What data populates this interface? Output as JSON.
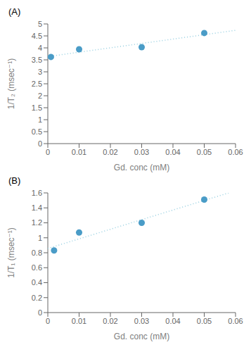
{
  "chart_data": [
    {
      "type": "scatter",
      "title": "(A)",
      "xlabel": "Gd. conc (mM)",
      "ylabel": "1/T₂ (msec⁻¹)",
      "x": [
        0.001,
        0.01,
        0.03,
        0.05
      ],
      "values": [
        3.62,
        3.94,
        4.03,
        4.62
      ],
      "color": "#4a9cc7",
      "trendline": {
        "x": [
          0,
          0.06
        ],
        "values": [
          3.6368,
          4.7331
        ],
        "color": "#96cfe0",
        "line_style": "dotted"
      },
      "xlim": [
        0,
        0.06
      ],
      "ylim": [
        0,
        5
      ],
      "xticks": [
        0,
        0.01,
        0.02,
        0.03,
        0.04,
        0.05,
        0.06
      ],
      "yticks": [
        0,
        0.5,
        1,
        1.5,
        2,
        2.5,
        3,
        3.5,
        4,
        4.5,
        5
      ],
      "grid": false
    },
    {
      "type": "scatter",
      "title": "(B)",
      "xlabel": "Gd. conc (mM)",
      "ylabel": "1/T₁ (msec⁻¹)",
      "x": [
        0.002,
        0.01,
        0.03,
        0.05
      ],
      "values": [
        0.83,
        1.07,
        1.2,
        1.51
      ],
      "color": "#4a9cc7",
      "trendline": {
        "x": [
          0,
          0.05783
        ],
        "values": [
          0.857,
          1.6
        ],
        "color": "#96cfe0",
        "line_style": "dotted"
      },
      "xlim": [
        0,
        0.06
      ],
      "ylim": [
        0,
        1.6
      ],
      "xticks": [
        0,
        0.01,
        0.02,
        0.03,
        0.04,
        0.05,
        0.06
      ],
      "yticks": [
        0,
        0.2,
        0.4,
        0.6,
        0.8,
        1,
        1.2,
        1.4,
        1.6
      ],
      "grid": false
    }
  ]
}
